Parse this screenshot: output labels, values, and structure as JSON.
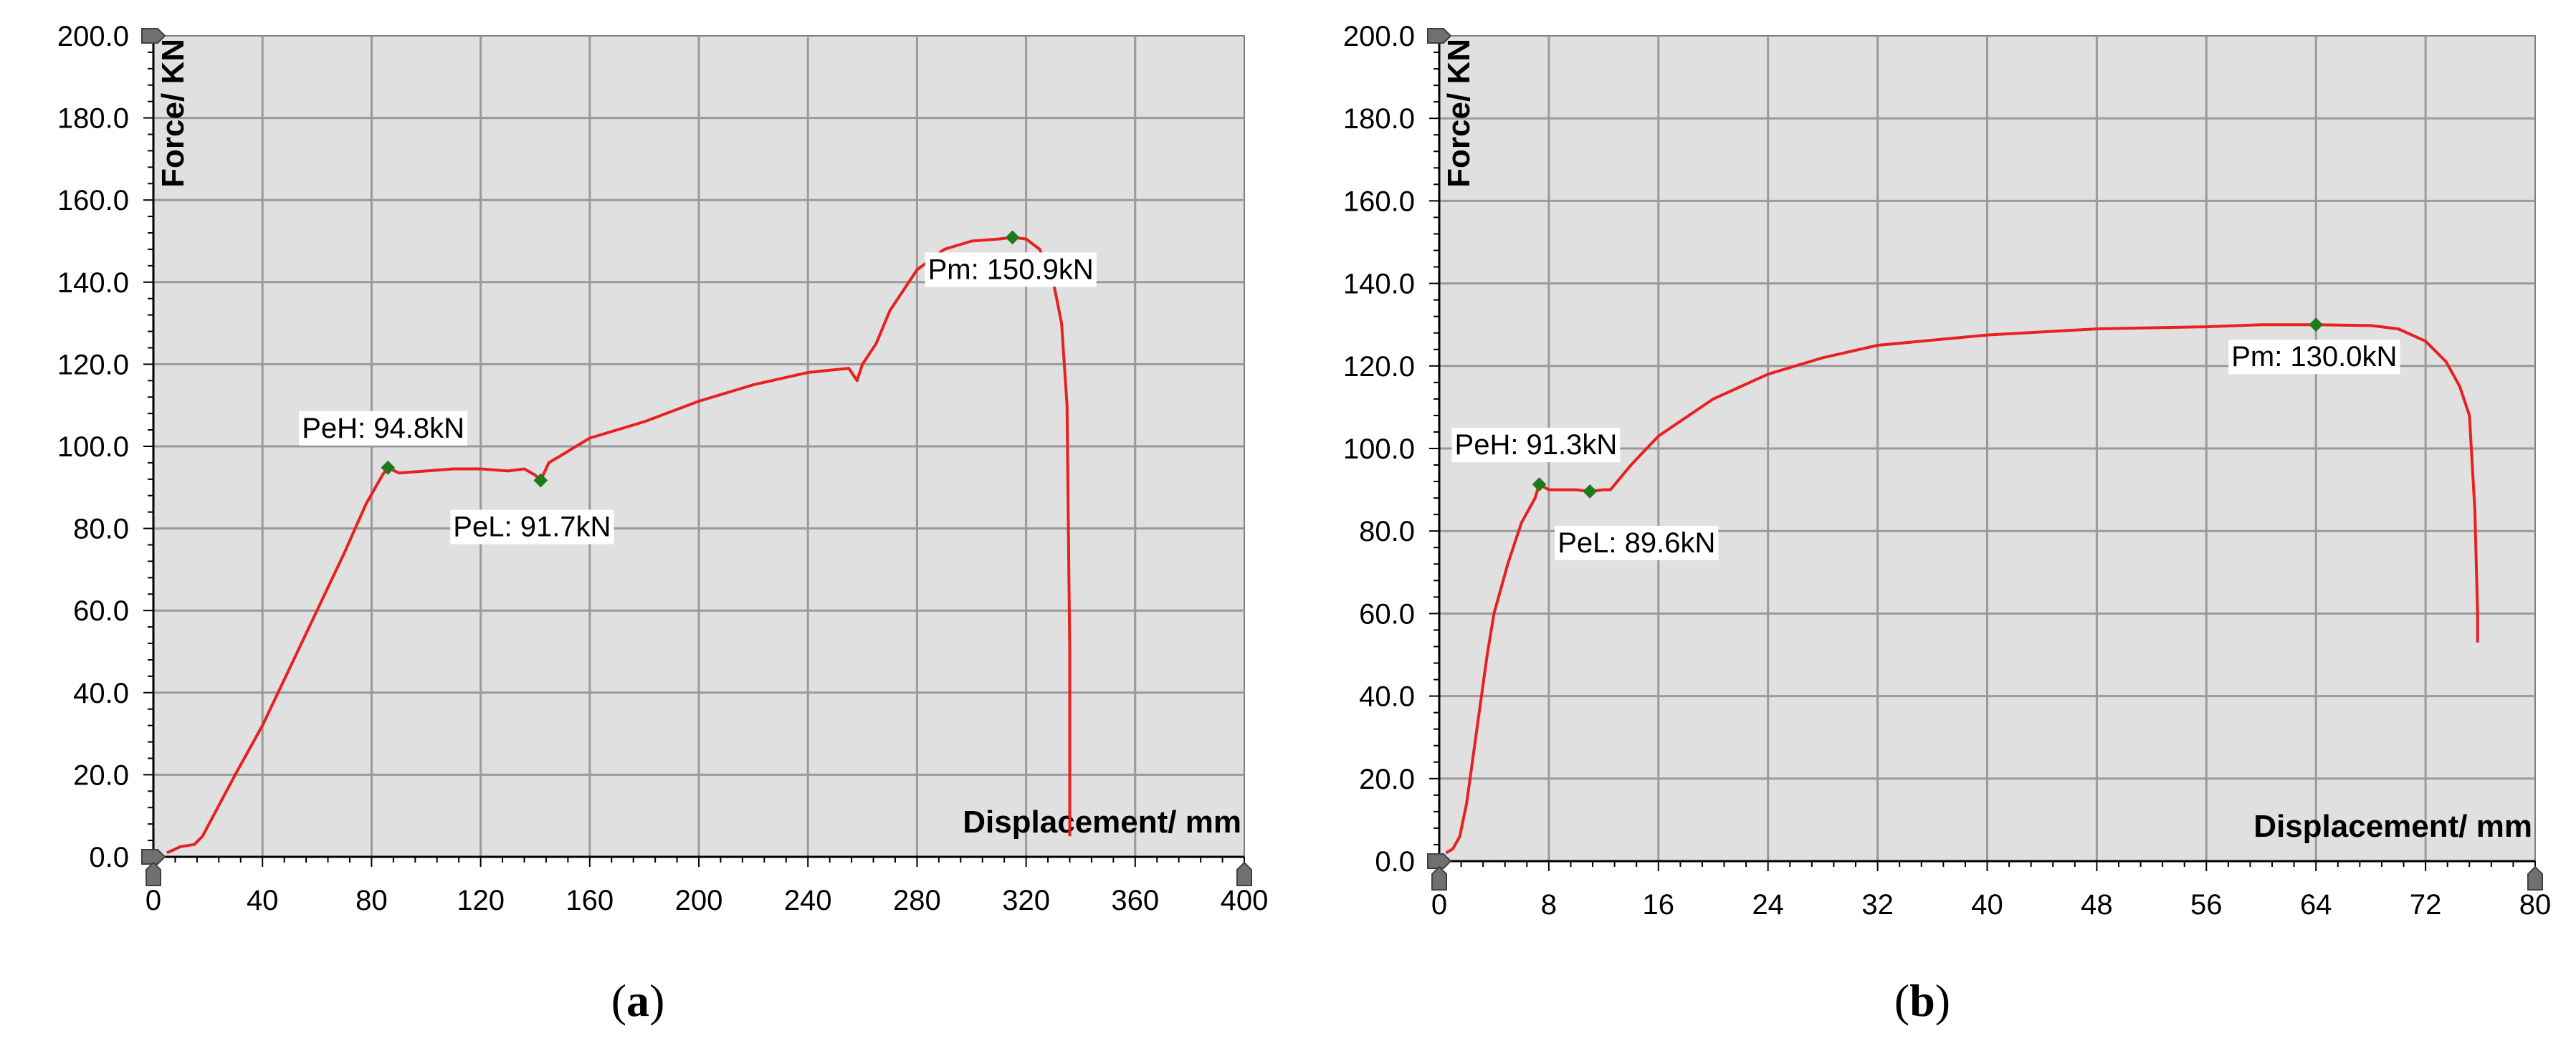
{
  "figure": {
    "panels": [
      {
        "caption_letter": "a"
      },
      {
        "caption_letter": "b"
      }
    ]
  },
  "chart_data": [
    {
      "type": "line",
      "panel": "a",
      "xlabel": "Displacement/ mm",
      "ylabel": "Force/ KN",
      "xlim": [
        0,
        400
      ],
      "ylim": [
        0,
        200
      ],
      "xticks": [
        0,
        40,
        80,
        120,
        160,
        200,
        240,
        280,
        320,
        360,
        400
      ],
      "yticks": [
        0,
        20,
        40,
        60,
        80,
        100,
        120,
        140,
        160,
        180,
        200
      ],
      "x_tick_labels": [
        "0",
        "40",
        "80",
        "120",
        "160",
        "200",
        "240",
        "280",
        "320",
        "360",
        "400"
      ],
      "y_tick_labels": [
        "0.0",
        "20.0",
        "40.0",
        "60.0",
        "80.0",
        "100.0",
        "120.0",
        "140.0",
        "160.0",
        "180.0",
        "200.0"
      ],
      "grid": true,
      "series_color": "#e8201e",
      "background_color": "#e0e0e0",
      "series": [
        {
          "x": [
            5,
            10,
            15,
            18,
            22,
            30,
            40,
            50,
            60,
            70,
            78,
            84,
            86,
            90,
            100,
            110,
            120,
            130,
            136,
            140,
            142,
            145,
            150,
            160,
            180,
            200,
            220,
            240,
            255,
            258,
            260,
            265,
            270,
            280,
            290,
            300,
            310,
            315,
            320,
            325,
            330,
            333,
            335,
            336,
            336
          ],
          "y": [
            1,
            2.5,
            3,
            5,
            10,
            20,
            32,
            46,
            60,
            74,
            86,
            93,
            94.8,
            93.5,
            94,
            94.5,
            94.5,
            94,
            94.5,
            93,
            91.7,
            96,
            98,
            102,
            106,
            111,
            115,
            118,
            119,
            116,
            120,
            125,
            133,
            143,
            148,
            150,
            150.5,
            150.9,
            150.5,
            148,
            140,
            130,
            110,
            50,
            5
          ]
        }
      ],
      "annotations": [
        {
          "label": "PeH: 94.8kN",
          "x": 86,
          "y": 94.8
        },
        {
          "label": "PeL: 91.7kN",
          "x": 142,
          "y": 91.7
        },
        {
          "label": "Pm: 150.9kN",
          "x": 315,
          "y": 150.9
        }
      ]
    },
    {
      "type": "line",
      "panel": "b",
      "xlabel": "Displacement/ mm",
      "ylabel": "Force/ KN",
      "xlim": [
        0,
        80
      ],
      "ylim": [
        0,
        200
      ],
      "xticks": [
        0,
        8,
        16,
        24,
        32,
        40,
        48,
        56,
        64,
        72,
        80
      ],
      "yticks": [
        0,
        20,
        40,
        60,
        80,
        100,
        120,
        140,
        160,
        180,
        200
      ],
      "x_tick_labels": [
        "0",
        "8",
        "16",
        "24",
        "32",
        "40",
        "48",
        "56",
        "64",
        "72",
        "80"
      ],
      "y_tick_labels": [
        "0.0",
        "20.0",
        "40.0",
        "60.0",
        "80.0",
        "100.0",
        "120.0",
        "140.0",
        "160.0",
        "180.0",
        "200.0"
      ],
      "grid": true,
      "series_color": "#e8201e",
      "background_color": "#e0e0e0",
      "series": [
        {
          "x": [
            0.5,
            1.0,
            1.5,
            2.0,
            2.5,
            3.0,
            3.5,
            4.0,
            5.0,
            6.0,
            7.0,
            7.3,
            8.0,
            9.0,
            10.0,
            11.0,
            12.0,
            12.5,
            14.0,
            16.0,
            20.0,
            24.0,
            28.0,
            32.0,
            40.0,
            48.0,
            56.0,
            60.0,
            64.0,
            68.0,
            70.0,
            72.0,
            73.5,
            74.5,
            75.2,
            75.6,
            75.8,
            75.8
          ],
          "y": [
            2,
            3,
            6,
            14,
            26,
            38,
            50,
            60,
            72,
            82,
            88,
            91.3,
            90,
            90,
            90,
            89.6,
            90,
            90,
            96,
            103,
            112,
            118,
            122,
            125,
            127.5,
            129,
            129.5,
            130,
            130,
            129.8,
            129,
            126,
            121,
            115,
            108,
            85,
            60,
            53
          ]
        }
      ],
      "annotations": [
        {
          "label": "PeH: 91.3kN",
          "x": 7.3,
          "y": 91.3
        },
        {
          "label": "PeL: 89.6kN",
          "x": 11.0,
          "y": 89.6
        },
        {
          "label": "Pm: 130.0kN",
          "x": 64.0,
          "y": 130.0
        }
      ]
    }
  ]
}
